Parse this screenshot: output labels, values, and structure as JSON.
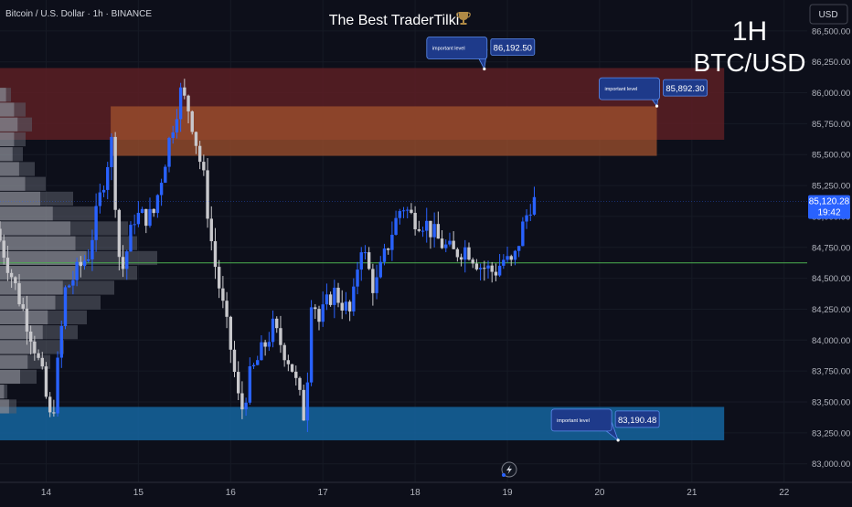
{
  "header": {
    "symbol_info": "Bitcoin / U.S. Dollar · 1h · BINANCE",
    "title": "The Best TraderTilki",
    "trophy_icon": "trophy-icon",
    "currency_button": "USD"
  },
  "watermark": {
    "line1": "1H",
    "line2": "BTC/USD"
  },
  "chart_data": {
    "type": "candlestick",
    "title": "The Best TraderTilki",
    "ylim": [
      82850,
      86750
    ],
    "y_ticks": [
      83000,
      83250,
      83500,
      83750,
      84000,
      84250,
      84500,
      84750,
      85000,
      85250,
      85500,
      85750,
      86000,
      86250,
      86500
    ],
    "y_tick_labels": [
      "83,000.00",
      "83,250.00",
      "83,500.00",
      "83,750.00",
      "84,000.00",
      "84,250.00",
      "84,500.00",
      "84,750.00",
      "85,000.00",
      "85,250.00",
      "85,500.00",
      "85,750.00",
      "86,000.00",
      "86,250.00",
      "86,500.00"
    ],
    "x_day_range": [
      13.5,
      22.25
    ],
    "x_ticks": [
      14,
      15,
      16,
      17,
      18,
      19,
      20,
      21,
      22
    ],
    "x_tick_labels": [
      "14",
      "15",
      "16",
      "17",
      "18",
      "19",
      "20",
      "21",
      "22"
    ],
    "last_price": {
      "value": 85120.28,
      "label": "85,120.28",
      "countdown": "19:42"
    },
    "horizontal_line": {
      "value": 84625,
      "color": "#4caf50"
    },
    "zones": [
      {
        "from_day": 13.5,
        "to_day": 21.35,
        "low": 85620,
        "high": 86200,
        "color": "#5c1e24"
      },
      {
        "from_day": 14.7,
        "to_day": 20.62,
        "low": 85490,
        "high": 85890,
        "color": "#a0522d"
      },
      {
        "from_day": 13.5,
        "to_day": 21.35,
        "low": 83190,
        "high": 83460,
        "color": "#1565a0"
      }
    ],
    "callouts": [
      {
        "title": "important level",
        "value": "86,192.50",
        "anchor_day": 18.75,
        "anchor_price": 86192.5
      },
      {
        "title": "important level",
        "value": "85,892.30",
        "anchor_day": 20.62,
        "anchor_price": 85892.3
      },
      {
        "title": "important level",
        "value": "83,190.48",
        "anchor_day": 20.2,
        "anchor_price": 83190.48
      }
    ],
    "volume_profile": [
      {
        "low": 83400,
        "high": 83520,
        "length": 18
      },
      {
        "low": 83520,
        "high": 83640,
        "length": 8
      },
      {
        "low": 83640,
        "high": 83760,
        "length": 40
      },
      {
        "low": 83760,
        "high": 83880,
        "length": 55
      },
      {
        "low": 83880,
        "high": 84000,
        "length": 70
      },
      {
        "low": 84000,
        "high": 84120,
        "length": 85
      },
      {
        "low": 84120,
        "high": 84240,
        "length": 95
      },
      {
        "low": 84240,
        "high": 84360,
        "length": 110
      },
      {
        "low": 84360,
        "high": 84480,
        "length": 125
      },
      {
        "low": 84480,
        "high": 84600,
        "length": 150
      },
      {
        "low": 84600,
        "high": 84720,
        "length": 172
      },
      {
        "low": 84720,
        "high": 84840,
        "length": 150
      },
      {
        "low": 84840,
        "high": 84960,
        "length": 140
      },
      {
        "low": 84960,
        "high": 85080,
        "length": 105
      },
      {
        "low": 85080,
        "high": 85200,
        "length": 80
      },
      {
        "low": 85200,
        "high": 85320,
        "length": 50
      },
      {
        "low": 85320,
        "high": 85440,
        "length": 38
      },
      {
        "low": 85440,
        "high": 85560,
        "length": 25
      },
      {
        "low": 85560,
        "high": 85680,
        "length": 28
      },
      {
        "low": 85680,
        "high": 85800,
        "length": 35
      },
      {
        "low": 85800,
        "high": 85920,
        "length": 28
      },
      {
        "low": 85920,
        "high": 86040,
        "length": 12
      }
    ],
    "candle_waypoints": [
      [
        13.5,
        84900
      ],
      [
        13.9,
        84000
      ],
      [
        14.0,
        83700
      ],
      [
        14.1,
        83300
      ],
      [
        14.25,
        84400
      ],
      [
        14.5,
        84700
      ],
      [
        14.75,
        85600
      ],
      [
        14.85,
        84500
      ],
      [
        15.0,
        85000
      ],
      [
        15.2,
        85000
      ],
      [
        15.4,
        85700
      ],
      [
        15.5,
        86000
      ],
      [
        15.6,
        85850
      ],
      [
        15.75,
        85300
      ],
      [
        15.85,
        84700
      ],
      [
        15.95,
        84300
      ],
      [
        16.05,
        83900
      ],
      [
        16.15,
        83400
      ],
      [
        16.25,
        83700
      ],
      [
        16.5,
        84100
      ],
      [
        16.7,
        83800
      ],
      [
        16.85,
        83350
      ],
      [
        16.92,
        84400
      ],
      [
        17.0,
        84150
      ],
      [
        17.15,
        84400
      ],
      [
        17.35,
        84200
      ],
      [
        17.45,
        84800
      ],
      [
        17.6,
        84400
      ],
      [
        17.8,
        84900
      ],
      [
        17.9,
        85100
      ],
      [
        18.0,
        85000
      ],
      [
        18.15,
        84950
      ],
      [
        18.3,
        84800
      ],
      [
        18.45,
        84700
      ],
      [
        18.6,
        84750
      ],
      [
        18.75,
        84600
      ],
      [
        18.9,
        84550
      ],
      [
        19.0,
        84650
      ],
      [
        19.1,
        84600
      ],
      [
        19.2,
        84900
      ],
      [
        19.3,
        85120
      ]
    ]
  }
}
